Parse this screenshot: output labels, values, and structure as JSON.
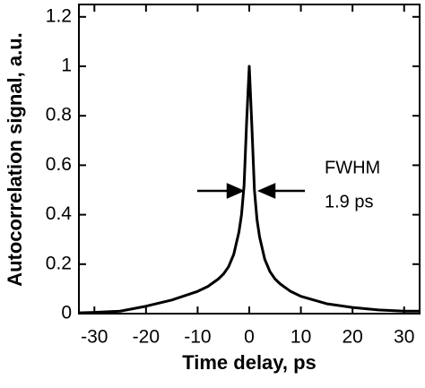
{
  "chart_data": {
    "type": "line",
    "xlabel": "Time delay, ps",
    "ylabel": "Autocorrelation signal, a.u.",
    "x": [
      -33,
      -30,
      -25,
      -20,
      -15,
      -10,
      -8,
      -6,
      -5,
      -4,
      -3,
      -2,
      -1.5,
      -1,
      -0.5,
      0,
      0.5,
      1,
      1.5,
      2,
      3,
      4,
      5,
      6,
      8,
      10,
      15,
      20,
      25,
      30,
      33
    ],
    "series": [
      {
        "color": "#000000",
        "values": [
          0.003,
          0.005,
          0.01,
          0.03,
          0.055,
          0.09,
          0.11,
          0.14,
          0.16,
          0.19,
          0.24,
          0.33,
          0.4,
          0.52,
          0.78,
          1.0,
          0.76,
          0.5,
          0.38,
          0.31,
          0.22,
          0.17,
          0.14,
          0.12,
          0.09,
          0.07,
          0.04,
          0.025,
          0.015,
          0.01,
          0.01
        ]
      }
    ],
    "xlim": [
      -33,
      33
    ],
    "ylim": [
      0,
      1.25
    ],
    "xticks": [
      -30,
      -20,
      -10,
      0,
      10,
      20,
      30
    ],
    "yticks": [
      0,
      0.2,
      0.4,
      0.6,
      0.8,
      1,
      1.2
    ],
    "annotations": [
      "FWHM",
      "1.9 ps"
    ]
  }
}
